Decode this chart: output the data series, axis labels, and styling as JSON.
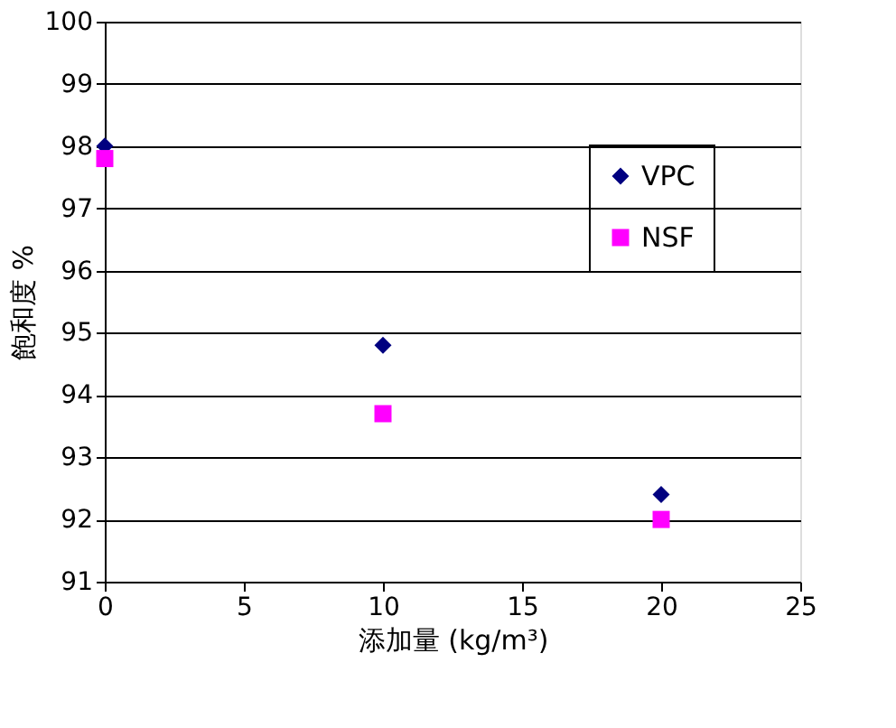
{
  "chart_data": {
    "type": "scatter",
    "x": [
      0,
      10,
      20
    ],
    "xlabel": "添加量 (kg/m³)",
    "ylabel": "飽和度 %",
    "xlim": [
      0,
      25
    ],
    "xticks": [
      0,
      5,
      10,
      15,
      20,
      25
    ],
    "ylim": [
      91,
      100
    ],
    "yticks": [
      91,
      92,
      93,
      94,
      95,
      96,
      97,
      98,
      99,
      100
    ],
    "grid": "y",
    "legend": "right",
    "series": [
      {
        "name": "VPC",
        "color": "#000080",
        "marker": "diamond",
        "values": [
          98.0,
          94.8,
          92.4
        ]
      },
      {
        "name": "NSF",
        "color": "#ff00ff",
        "marker": "square",
        "values": [
          97.8,
          93.7,
          92.0
        ]
      }
    ]
  }
}
